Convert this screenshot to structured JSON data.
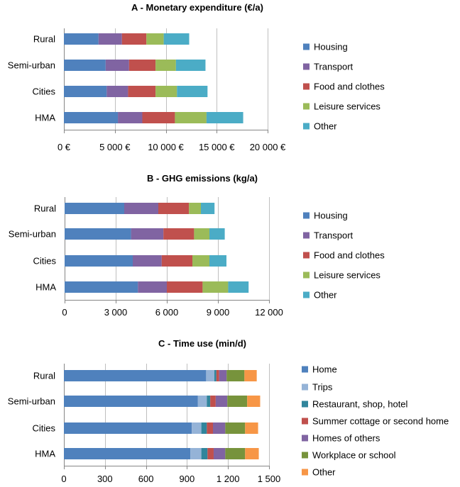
{
  "chart_data": [
    {
      "type": "bar",
      "orientation": "horizontal",
      "stacked": true,
      "title": "A - Monetary expenditure (€/a)",
      "categories": [
        "Rural",
        "Semi-urban",
        "Cities",
        "HMA"
      ],
      "series": [
        {
          "name": "Housing",
          "color": "#4F81BD",
          "values": [
            3400,
            4100,
            4200,
            5300
          ]
        },
        {
          "name": "Transport",
          "color": "#8064A2",
          "values": [
            2300,
            2300,
            2100,
            2400
          ]
        },
        {
          "name": "Food and clothes",
          "color": "#C0504D",
          "values": [
            2400,
            2600,
            2700,
            3200
          ]
        },
        {
          "name": "Leisure services",
          "color": "#9BBB59",
          "values": [
            1700,
            2000,
            2100,
            3100
          ]
        },
        {
          "name": "Other",
          "color": "#4BACC6",
          "values": [
            2500,
            2900,
            3000,
            3600
          ]
        }
      ],
      "xlim": [
        0,
        20000
      ],
      "xticks": [
        0,
        5000,
        10000,
        15000,
        20000
      ],
      "xtick_labels": [
        "0 €",
        "5 000 €",
        "10 000 €",
        "15 000 €",
        "20 000 €"
      ],
      "grid": true
    },
    {
      "type": "bar",
      "orientation": "horizontal",
      "stacked": true,
      "title": "B - GHG emissions (kg/a)",
      "categories": [
        "Rural",
        "Semi-urban",
        "Cities",
        "HMA"
      ],
      "series": [
        {
          "name": "Housing",
          "color": "#4F81BD",
          "values": [
            3500,
            3900,
            4000,
            4300
          ]
        },
        {
          "name": "Transport",
          "color": "#8064A2",
          "values": [
            2000,
            1900,
            1700,
            1700
          ]
        },
        {
          "name": "Food and clothes",
          "color": "#C0504D",
          "values": [
            1800,
            1800,
            1800,
            2100
          ]
        },
        {
          "name": "Leisure services",
          "color": "#9BBB59",
          "values": [
            700,
            900,
            1000,
            1500
          ]
        },
        {
          "name": "Other",
          "color": "#4BACC6",
          "values": [
            800,
            900,
            1000,
            1200
          ]
        }
      ],
      "xlim": [
        0,
        12000
      ],
      "xticks": [
        0,
        3000,
        6000,
        9000,
        12000
      ],
      "xtick_labels": [
        "0",
        "3 000",
        "6 000",
        "9 000",
        "12 000"
      ],
      "grid": true
    },
    {
      "type": "bar",
      "orientation": "horizontal",
      "stacked": true,
      "title": "C - Time use (min/d)",
      "categories": [
        "Rural",
        "Semi-urban",
        "Cities",
        "HMA"
      ],
      "series": [
        {
          "name": "Home",
          "color": "#4F81BD",
          "values": [
            1040,
            980,
            935,
            925
          ]
        },
        {
          "name": "Trips",
          "color": "#95B3D7",
          "values": [
            60,
            65,
            70,
            80
          ]
        },
        {
          "name": "Restaurant, shop, hotel",
          "color": "#31859C",
          "values": [
            15,
            25,
            40,
            45
          ]
        },
        {
          "name": "Summer cottage or second home",
          "color": "#C0504D",
          "values": [
            20,
            40,
            45,
            45
          ]
        },
        {
          "name": "Homes of others",
          "color": "#8064A2",
          "values": [
            55,
            85,
            90,
            85
          ]
        },
        {
          "name": "Workplace or school",
          "color": "#77933C",
          "values": [
            130,
            145,
            145,
            145
          ]
        },
        {
          "name": "Other",
          "color": "#F79646",
          "values": [
            90,
            95,
            95,
            100
          ]
        }
      ],
      "xlim": [
        0,
        1500
      ],
      "xticks": [
        0,
        300,
        600,
        900,
        1200,
        1500
      ],
      "xtick_labels": [
        "0",
        "300",
        "600",
        "900",
        "1 200",
        "1 500"
      ],
      "grid": true
    }
  ]
}
